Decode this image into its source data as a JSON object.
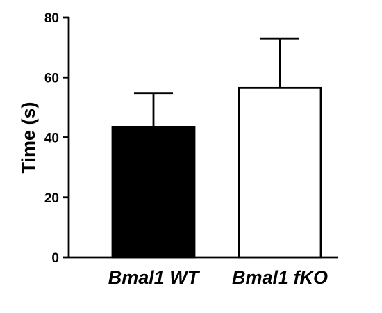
{
  "chart_data": {
    "type": "bar",
    "title": "",
    "xlabel": "",
    "ylabel": "Time (s)",
    "ylim": [
      0,
      80
    ],
    "yticks": [
      0,
      20,
      40,
      60,
      80
    ],
    "grid": false,
    "legend": "none",
    "categories": [
      "Bmal1 WT",
      "Bmal1 fKO"
    ],
    "values": [
      43.5,
      56.5
    ],
    "error_upper": [
      11.3,
      16.5
    ],
    "bar_fill": [
      "#000000",
      "#ffffff"
    ],
    "bar_stroke": "#000000"
  }
}
